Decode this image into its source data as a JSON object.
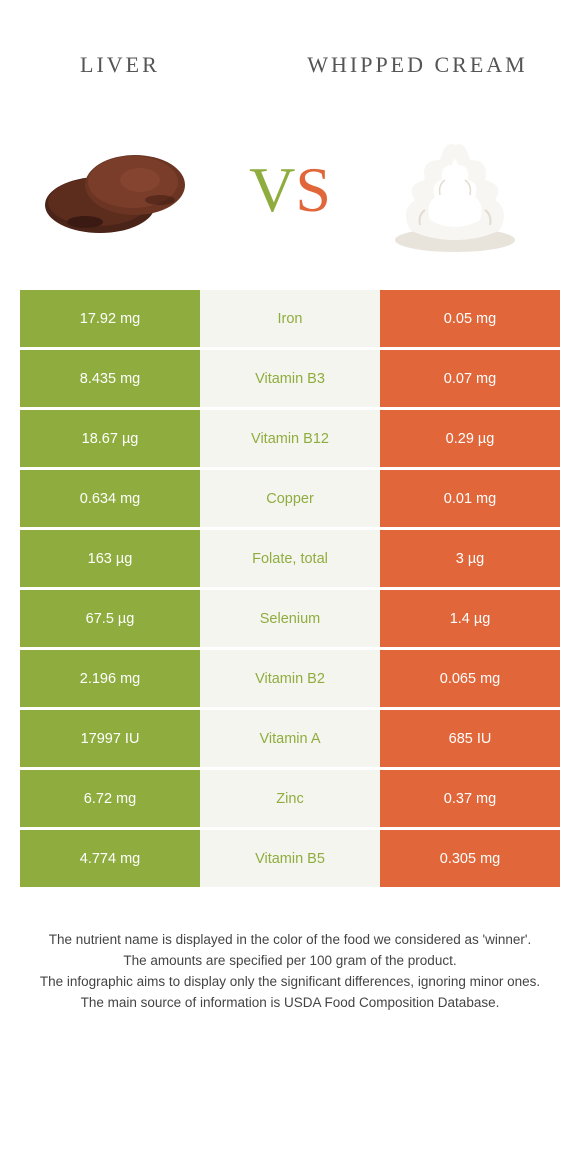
{
  "header": {
    "left_title": "LIVER",
    "right_title": "WHIPPED CREAM",
    "vs_v": "V",
    "vs_s": "S"
  },
  "colors": {
    "left_bg": "#8fad3e",
    "right_bg": "#e1663a",
    "mid_bg": "#f5f5f0",
    "left_text": "#8fad3e",
    "right_text": "#e1663a",
    "liver_dark": "#4a2319",
    "liver_mid": "#6b3423",
    "cream_body": "#f8f6f2",
    "cream_shadow": "#e8e4db"
  },
  "rows": [
    {
      "left": "17.92 mg",
      "label": "Iron",
      "right": "0.05 mg",
      "winner": "left"
    },
    {
      "left": "8.435 mg",
      "label": "Vitamin B3",
      "right": "0.07 mg",
      "winner": "left"
    },
    {
      "left": "18.67 µg",
      "label": "Vitamin B12",
      "right": "0.29 µg",
      "winner": "left"
    },
    {
      "left": "0.634 mg",
      "label": "Copper",
      "right": "0.01 mg",
      "winner": "left"
    },
    {
      "left": "163 µg",
      "label": "Folate, total",
      "right": "3 µg",
      "winner": "left"
    },
    {
      "left": "67.5 µg",
      "label": "Selenium",
      "right": "1.4 µg",
      "winner": "left"
    },
    {
      "left": "2.196 mg",
      "label": "Vitamin B2",
      "right": "0.065 mg",
      "winner": "left"
    },
    {
      "left": "17997 IU",
      "label": "Vitamin A",
      "right": "685 IU",
      "winner": "left"
    },
    {
      "left": "6.72 mg",
      "label": "Zinc",
      "right": "0.37 mg",
      "winner": "left"
    },
    {
      "left": "4.774 mg",
      "label": "Vitamin B5",
      "right": "0.305 mg",
      "winner": "left"
    }
  ],
  "footer": {
    "l1": "The nutrient name is displayed in the color of the food we considered as 'winner'.",
    "l2": "The amounts are specified per 100 gram of the product.",
    "l3": "The infographic aims to display only the significant differences, ignoring minor ones.",
    "l4": "The main source of information is USDA Food Composition Database."
  }
}
